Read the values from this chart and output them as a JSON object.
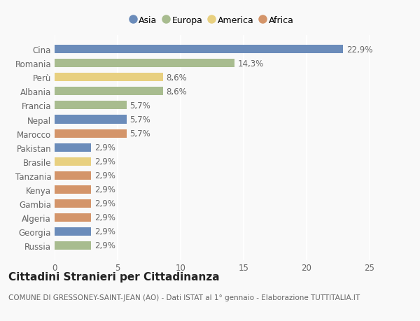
{
  "countries": [
    "Cina",
    "Romania",
    "Perù",
    "Albania",
    "Francia",
    "Nepal",
    "Marocco",
    "Pakistan",
    "Brasile",
    "Tanzania",
    "Kenya",
    "Gambia",
    "Algeria",
    "Georgia",
    "Russia"
  ],
  "values": [
    22.9,
    14.3,
    8.6,
    8.6,
    5.7,
    5.7,
    5.7,
    2.9,
    2.9,
    2.9,
    2.9,
    2.9,
    2.9,
    2.9,
    2.9
  ],
  "labels": [
    "22,9%",
    "14,3%",
    "8,6%",
    "8,6%",
    "5,7%",
    "5,7%",
    "5,7%",
    "2,9%",
    "2,9%",
    "2,9%",
    "2,9%",
    "2,9%",
    "2,9%",
    "2,9%",
    "2,9%"
  ],
  "continents": [
    "Asia",
    "Europa",
    "America",
    "Europa",
    "Europa",
    "Asia",
    "Africa",
    "Asia",
    "America",
    "Africa",
    "Africa",
    "Africa",
    "Africa",
    "Asia",
    "Europa"
  ],
  "colors": {
    "Asia": "#6b8cba",
    "Europa": "#a8bc8f",
    "America": "#e8d080",
    "Africa": "#d4956a"
  },
  "legend_order": [
    "Asia",
    "Europa",
    "America",
    "Africa"
  ],
  "xlim": [
    0,
    25
  ],
  "xticks": [
    0,
    5,
    10,
    15,
    20,
    25
  ],
  "title": "Cittadini Stranieri per Cittadinanza",
  "subtitle": "COMUNE DI GRESSONEY-SAINT-JEAN (AO) - Dati ISTAT al 1° gennaio - Elaborazione TUTTITALIA.IT",
  "background_color": "#f9f9f9",
  "bar_height": 0.6,
  "label_fontsize": 8.5,
  "tick_fontsize": 8.5,
  "title_fontsize": 11,
  "subtitle_fontsize": 7.5,
  "grid_color": "#ffffff",
  "text_color": "#666666"
}
